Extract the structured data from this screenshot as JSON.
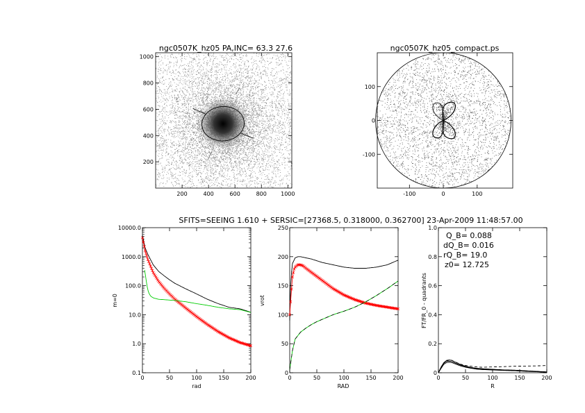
{
  "header": "SFITS=SEEING 1.610 + SERSIC=[27368.5, 0.318000, 0.362700]  23-Apr-2009 11:48:57.00",
  "colors": {
    "red": "#ff0000",
    "green": "#00cc00",
    "black": "#000000",
    "grey": "#808080"
  },
  "chart_data": [
    {
      "id": "image",
      "type": "heatmap",
      "title": "ngc0507K_hz05 PA,INC= 63.3 27.6",
      "xlim": [
        0,
        1030
      ],
      "ylim": [
        0,
        1030
      ],
      "xticks": [
        "200",
        "400",
        "600",
        "800",
        "1000"
      ],
      "yticks": [
        "200",
        "400",
        "600",
        "800",
        "1000"
      ],
      "center": [
        510,
        490
      ],
      "ellipse": {
        "a": 160,
        "b": 130,
        "angle_deg": 26.7
      }
    },
    {
      "id": "compact",
      "type": "scatter",
      "title": "ngc0507K_hz05_compact.ps",
      "xlim": [
        -195,
        205
      ],
      "ylim": [
        -200,
        200
      ],
      "xticks": [
        "-100",
        "0",
        "100"
      ],
      "yticks": [
        "-100",
        "0",
        "100"
      ],
      "radius": 200
    },
    {
      "id": "profile",
      "type": "line",
      "log_y": true,
      "xlim": [
        0,
        200
      ],
      "ylim": [
        0.1,
        10000
      ],
      "xticks": [
        "0",
        "50",
        "100",
        "150",
        "200"
      ],
      "yticks": [
        "0.1",
        "1.0",
        "10.0",
        "100.0",
        "1000.0",
        "10000.0"
      ],
      "xlabel": "rad",
      "ylabel": "m=0",
      "series": [
        {
          "color": "black",
          "x": [
            0,
            5,
            10,
            20,
            30,
            40,
            50,
            60,
            80,
            100,
            120,
            140,
            160,
            180,
            190,
            195,
            200
          ],
          "y": [
            5500,
            2000,
            1200,
            520,
            310,
            220,
            160,
            120,
            78,
            52,
            34,
            24,
            18,
            16,
            14,
            13,
            12
          ]
        },
        {
          "color": "red",
          "marker": "x",
          "x": [
            0,
            5,
            10,
            20,
            30,
            40,
            50,
            60,
            80,
            100,
            120,
            140,
            160,
            180,
            200
          ],
          "y": [
            4500,
            1600,
            800,
            280,
            140,
            82,
            52,
            34,
            17,
            8.6,
            4.6,
            2.6,
            1.6,
            1.1,
            0.85
          ]
        },
        {
          "color": "green",
          "x": [
            4,
            6,
            8,
            10,
            12,
            15,
            20,
            30,
            40,
            50,
            60,
            80,
            100,
            120,
            140,
            160,
            180,
            200
          ],
          "y": [
            350,
            200,
            110,
            72,
            55,
            44,
            38,
            34,
            33,
            32,
            31,
            28,
            24,
            21,
            18,
            16,
            15,
            12
          ]
        }
      ]
    },
    {
      "id": "vrot",
      "type": "line",
      "xlim": [
        0,
        200
      ],
      "ylim": [
        0,
        250
      ],
      "xticks": [
        "0",
        "50",
        "100",
        "150",
        "200"
      ],
      "yticks": [
        "0",
        "50",
        "100",
        "150",
        "200",
        "250"
      ],
      "xlabel": "RAD",
      "ylabel": "vrot",
      "series": [
        {
          "color": "black",
          "x": [
            0,
            2,
            5,
            10,
            15,
            20,
            25,
            30,
            40,
            50,
            60,
            80,
            100,
            120,
            140,
            160,
            180,
            200
          ],
          "y": [
            90,
            160,
            188,
            198,
            200,
            200,
            199,
            198,
            196,
            193,
            190,
            186,
            182,
            180,
            180,
            182,
            186,
            194
          ]
        },
        {
          "color": "red",
          "marker": "x",
          "x": [
            0,
            3,
            5,
            8,
            10,
            15,
            20,
            25,
            30,
            40,
            50,
            60,
            80,
            100,
            120,
            140,
            160,
            180,
            200
          ],
          "y": [
            100,
            140,
            165,
            178,
            182,
            186,
            186,
            184,
            180,
            173,
            166,
            159,
            145,
            134,
            126,
            120,
            116,
            113,
            110
          ]
        },
        {
          "color": "green",
          "x": [
            0,
            5,
            10,
            20,
            30,
            40,
            50,
            60,
            80,
            100,
            120,
            140,
            160,
            180,
            200
          ],
          "y": [
            5,
            38,
            58,
            70,
            77,
            83,
            88,
            92,
            100,
            106,
            113,
            122,
            133,
            145,
            158
          ]
        }
      ]
    },
    {
      "id": "fourier",
      "type": "line",
      "xlim": [
        0,
        200
      ],
      "ylim": [
        0,
        1
      ],
      "xticks": [
        "0",
        "50",
        "100",
        "150",
        "200"
      ],
      "yticks": [
        "0",
        "0.2",
        "0.4",
        "0.6",
        "0.8",
        "1.0"
      ],
      "xlabel": "R",
      "ylabel": "FT/FR_0 - quadrants",
      "annotations": [
        "Q_B=  0.088",
        "dQ_B=  0.016",
        "rQ_B=   19.0",
        "z0= 12.725"
      ],
      "series": [
        {
          "color": "black",
          "x": [
            0,
            5,
            10,
            15,
            20,
            25,
            30,
            40,
            50,
            60,
            70,
            80,
            100,
            120,
            140,
            160,
            180,
            200
          ],
          "y": [
            0,
            0.04,
            0.07,
            0.085,
            0.088,
            0.085,
            0.075,
            0.058,
            0.045,
            0.037,
            0.031,
            0.028,
            0.024,
            0.02,
            0.018,
            0.014,
            0.01,
            0.006
          ]
        },
        {
          "color": "black",
          "x": [
            0,
            5,
            10,
            15,
            20,
            25,
            30,
            40,
            50,
            60,
            70,
            80,
            100,
            120,
            140,
            160,
            180,
            200
          ],
          "y": [
            0,
            0.035,
            0.065,
            0.078,
            0.08,
            0.077,
            0.068,
            0.053,
            0.042,
            0.034,
            0.028,
            0.025,
            0.022,
            0.018,
            0.016,
            0.012,
            0.008,
            0.004
          ]
        },
        {
          "color": "black",
          "x": [
            0,
            5,
            10,
            15,
            20,
            25,
            30,
            40,
            50,
            60,
            70,
            80,
            100,
            120,
            140,
            160,
            180,
            200
          ],
          "y": [
            0,
            0.03,
            0.058,
            0.07,
            0.072,
            0.07,
            0.062,
            0.048,
            0.038,
            0.031,
            0.025,
            0.022,
            0.019,
            0.016,
            0.014,
            0.01,
            0.007,
            0.003
          ]
        },
        {
          "color": "black",
          "dash": true,
          "x": [
            0,
            5,
            10,
            15,
            20,
            25,
            30,
            40,
            50,
            60,
            70,
            80,
            100,
            120,
            140,
            160,
            180,
            200
          ],
          "y": [
            0,
            0.035,
            0.065,
            0.08,
            0.088,
            0.085,
            0.076,
            0.06,
            0.05,
            0.045,
            0.04,
            0.038,
            0.04,
            0.042,
            0.045,
            0.046,
            0.047,
            0.05
          ]
        }
      ]
    }
  ]
}
